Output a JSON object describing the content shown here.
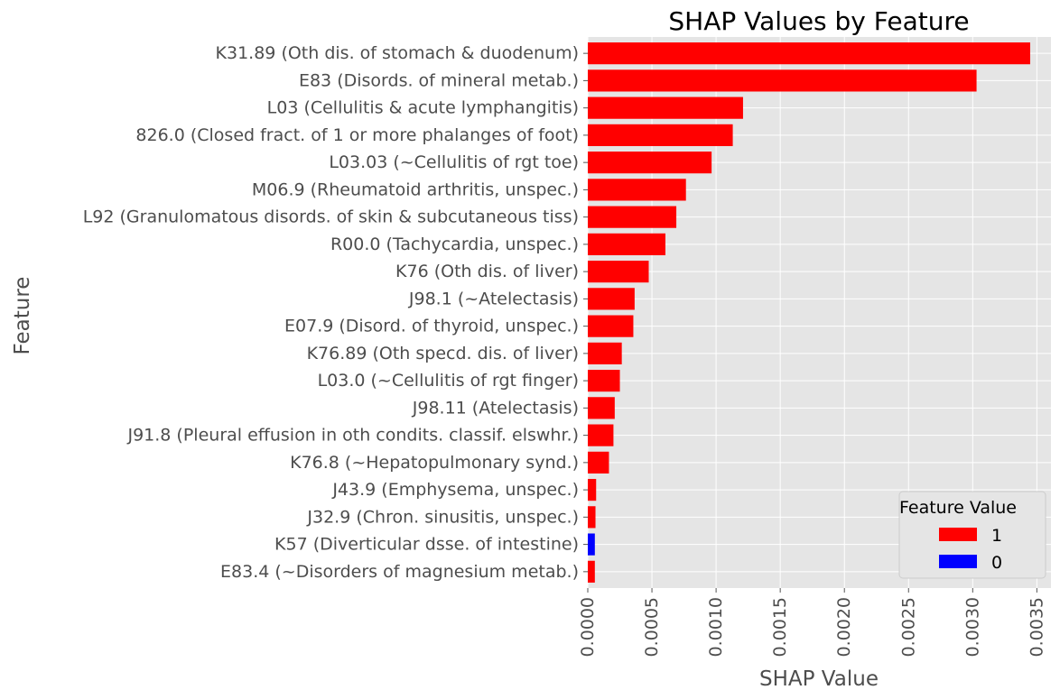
{
  "chart_data": {
    "type": "bar",
    "orientation": "horizontal",
    "title": "SHAP Values by Feature",
    "xlabel": "SHAP Value",
    "ylabel": "Feature",
    "xlim": [
      0,
      0.00361
    ],
    "xticks": [
      "0.0000",
      "0.0005",
      "0.0010",
      "0.0015",
      "0.0020",
      "0.0025",
      "0.0030",
      "0.0035"
    ],
    "xtick_values": [
      0,
      0.0005,
      0.001,
      0.0015,
      0.002,
      0.0025,
      0.003,
      0.0035
    ],
    "grid": true,
    "legend": {
      "title": "Feature Value",
      "placement": "lower-right",
      "entries": [
        {
          "label": "1",
          "color": "#ff0000"
        },
        {
          "label": "0",
          "color": "#0000ff"
        }
      ]
    },
    "bars": [
      {
        "feature": "K31.89 (Oth dis. of stomach & duodenum)",
        "value": 0.003448,
        "feature_value": "1"
      },
      {
        "feature": "E83 (Disords. of mineral metab.)",
        "value": 0.00303,
        "feature_value": "1"
      },
      {
        "feature": "L03 (Cellulitis & acute lymphangitis)",
        "value": 0.00121,
        "feature_value": "1"
      },
      {
        "feature": "826.0 (Closed fract. of 1 or more phalanges of foot)",
        "value": 0.00113,
        "feature_value": "1"
      },
      {
        "feature": "L03.03 (~Cellulitis of rgt toe)",
        "value": 0.000965,
        "feature_value": "1"
      },
      {
        "feature": "M06.9 (Rheumatoid arthritis, unspec.)",
        "value": 0.000765,
        "feature_value": "1"
      },
      {
        "feature": "L92 (Granulomatous disords. of skin & subcutaneous tiss)",
        "value": 0.00069,
        "feature_value": "1"
      },
      {
        "feature": "R00.0 (Tachycardia, unspec.)",
        "value": 0.000605,
        "feature_value": "1"
      },
      {
        "feature": "K76 (Oth dis. of liver)",
        "value": 0.000475,
        "feature_value": "1"
      },
      {
        "feature": "J98.1 (~Atelectasis)",
        "value": 0.000365,
        "feature_value": "1"
      },
      {
        "feature": "E07.9 (Disord. of thyroid, unspec.)",
        "value": 0.000355,
        "feature_value": "1"
      },
      {
        "feature": "K76.89 (Oth specd. dis. of liver)",
        "value": 0.000265,
        "feature_value": "1"
      },
      {
        "feature": "L03.0 (~Cellulitis of rgt finger)",
        "value": 0.00025,
        "feature_value": "1"
      },
      {
        "feature": "J98.11 (Atelectasis)",
        "value": 0.00021,
        "feature_value": "1"
      },
      {
        "feature": "J91.8 (Pleural effusion in oth condits. classif. elswhr.)",
        "value": 0.0002,
        "feature_value": "1"
      },
      {
        "feature": "K76.8 (~Hepatopulmonary synd.)",
        "value": 0.000165,
        "feature_value": "1"
      },
      {
        "feature": "J43.9 (Emphysema, unspec.)",
        "value": 6.5e-05,
        "feature_value": "1"
      },
      {
        "feature": "J32.9 (Chron. sinusitis, unspec.)",
        "value": 6e-05,
        "feature_value": "1"
      },
      {
        "feature": "K57 (Diverticular dsse. of intestine)",
        "value": 5.5e-05,
        "feature_value": "0"
      },
      {
        "feature": "E83.4 (~Disorders of magnesium metab.)",
        "value": 5.5e-05,
        "feature_value": "1"
      }
    ]
  },
  "style": {
    "plot_background": "#e5e5e5",
    "grid_color": "#ffffff",
    "text_color": "#4d4d4d"
  }
}
